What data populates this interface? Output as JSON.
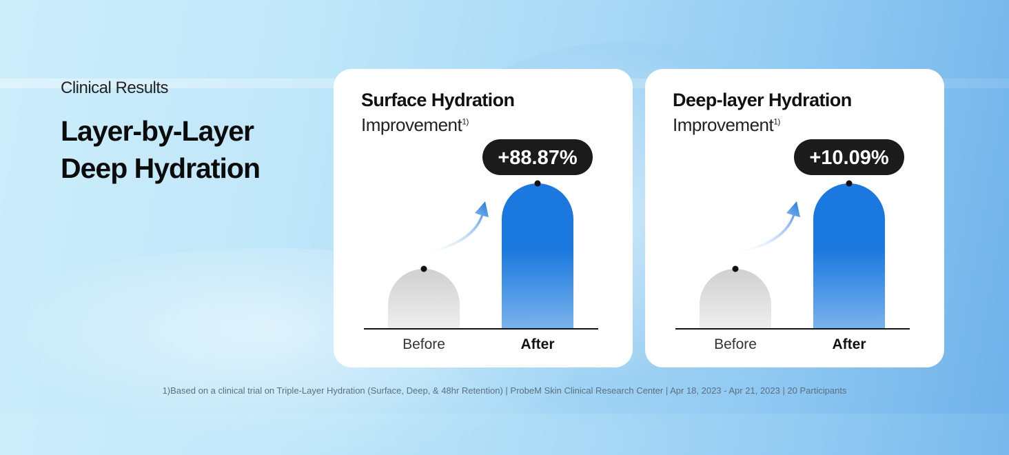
{
  "eyebrow": "Clinical Results",
  "headline_line1": "Layer-by-Layer",
  "headline_line2": "Deep Hydration",
  "chart_data": [
    {
      "type": "bar",
      "title": "Surface Hydration",
      "subtitle": "Improvement",
      "subtitle_mark": "1)",
      "categories": [
        "Before",
        "After"
      ],
      "annotation": "+88.87%"
    },
    {
      "type": "bar",
      "title": "Deep-layer Hydration",
      "subtitle": "Improvement",
      "subtitle_mark": "1)",
      "categories": [
        "Before",
        "After"
      ],
      "annotation": "+10.09%"
    }
  ],
  "colors": {
    "after_bar": "#1a78de",
    "before_bar": "#d0d0d0",
    "badge": "#1b1b1b"
  },
  "footnote": "1)Based on a clinical trial on Triple-Layer Hydration (Surface, Deep, & 48hr Retention) | ProbeM Skin Clinical Research Center | Apr 18, 2023 - Apr 21, 2023 | 20 Participants"
}
